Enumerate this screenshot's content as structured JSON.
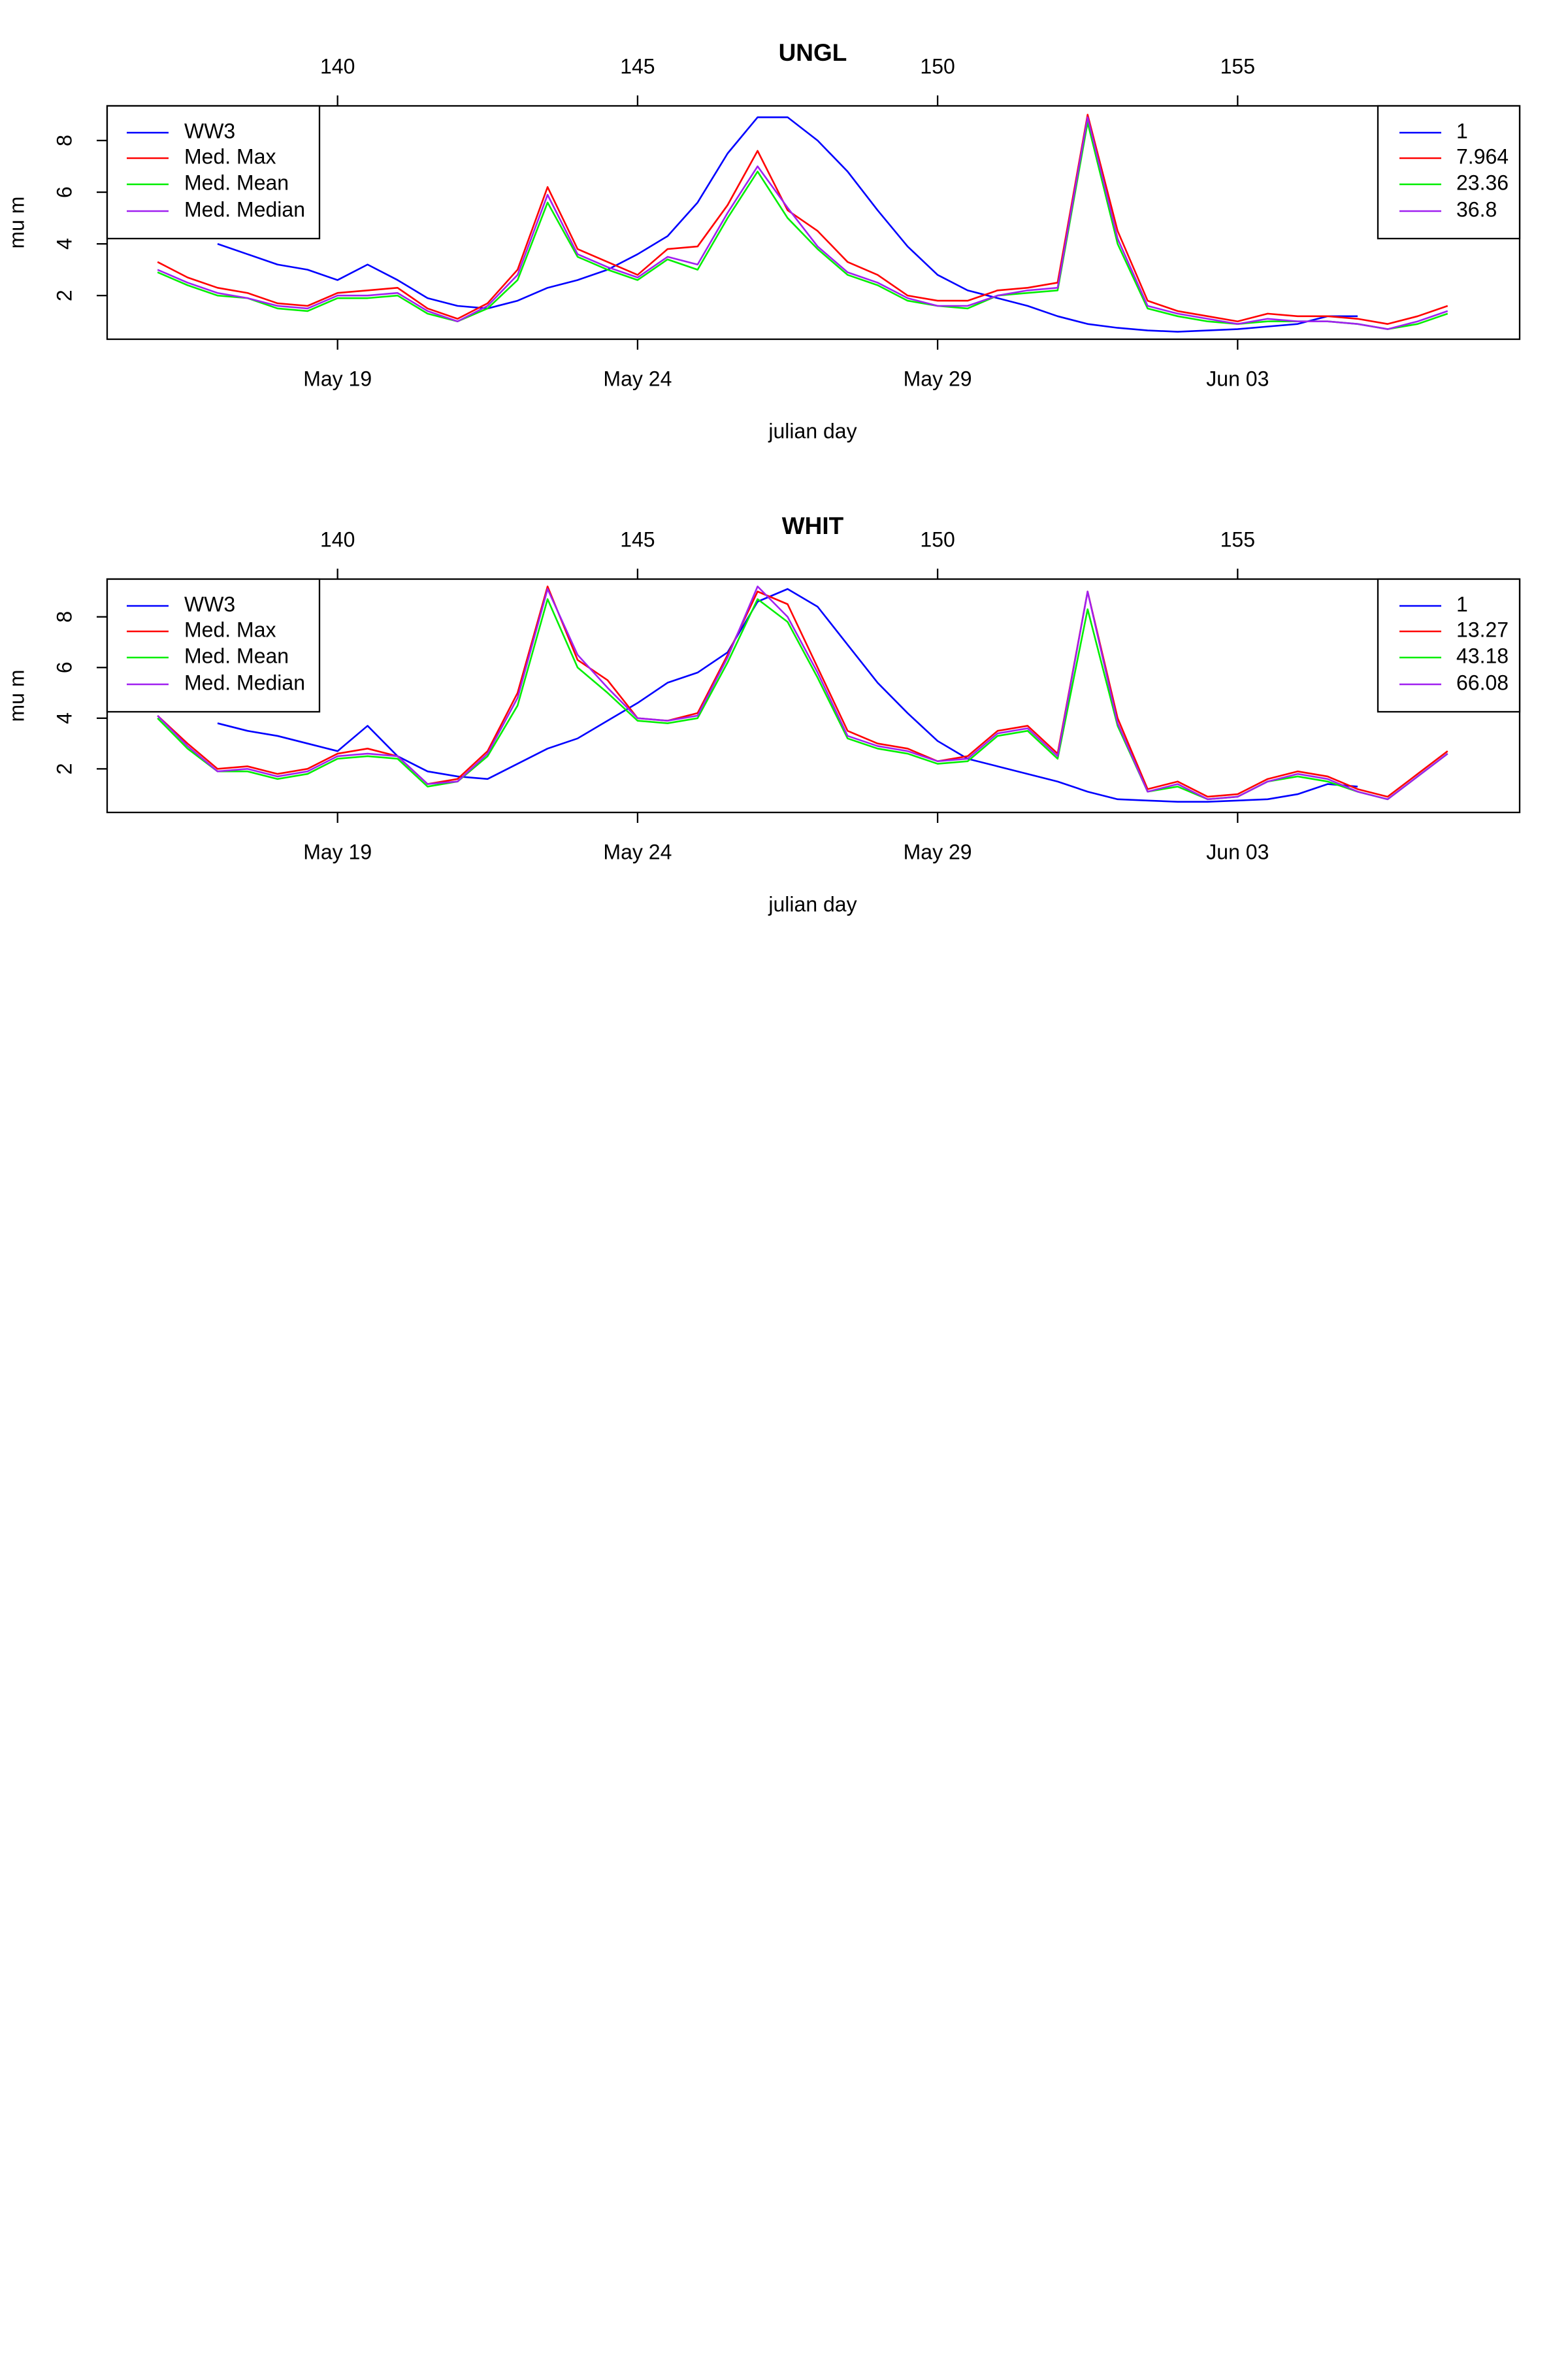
{
  "chart_data": [
    {
      "type": "line",
      "title": "UNGL",
      "x_label": "julian day",
      "y_label": "mu m",
      "xlim": [
        136.16,
        159.7
      ],
      "ylim": [
        0.31,
        9.34
      ],
      "yticks": [
        2,
        4,
        6,
        8
      ],
      "xticks": [
        140,
        145,
        150,
        155
      ],
      "x2ticks": [
        {
          "value": 140,
          "label": "May 19"
        },
        {
          "value": 145,
          "label": "May 24"
        },
        {
          "value": 150,
          "label": "May 29"
        },
        {
          "value": 155,
          "label": "Jun 03"
        }
      ],
      "series": [
        {
          "name": "WW3",
          "color": "#0000ff",
          "x": [
            138,
            138.5,
            139,
            139.5,
            140,
            140.5,
            141,
            141.5,
            142,
            142.5,
            143,
            143.5,
            144,
            144.5,
            145,
            145.5,
            146,
            146.5,
            147,
            147.5,
            148,
            148.5,
            149,
            149.5,
            150,
            150.5,
            151,
            151.5,
            152,
            152.5,
            153,
            153.5,
            154,
            154.5,
            155,
            155.5,
            156,
            156.5,
            157
          ],
          "values": [
            4.0,
            3.6,
            3.2,
            3.0,
            2.6,
            3.2,
            2.6,
            1.9,
            1.6,
            1.5,
            1.8,
            2.3,
            2.6,
            3.0,
            3.6,
            4.3,
            5.6,
            7.5,
            8.9,
            8.9,
            8.0,
            6.8,
            5.3,
            3.9,
            2.8,
            2.2,
            1.9,
            1.6,
            1.2,
            0.9,
            0.75,
            0.65,
            0.6,
            0.65,
            0.7,
            0.8,
            0.9,
            1.2,
            1.2
          ]
        },
        {
          "name": "Med. Max",
          "color": "#ff0000",
          "x": [
            137,
            137.5,
            138,
            138.5,
            139,
            139.5,
            140,
            140.5,
            141,
            141.5,
            142,
            142.5,
            143,
            143.5,
            144,
            144.5,
            145,
            145.5,
            146,
            146.5,
            147,
            147.5,
            148,
            148.5,
            149,
            149.5,
            150,
            150.5,
            151,
            151.5,
            152,
            152.5,
            153,
            153.5,
            154,
            154.5,
            155,
            155.5,
            156,
            156.5,
            157,
            157.5,
            158,
            158.5
          ],
          "values": [
            3.3,
            2.7,
            2.3,
            2.1,
            1.7,
            1.6,
            2.1,
            2.2,
            2.3,
            1.5,
            1.1,
            1.7,
            3.0,
            6.2,
            3.8,
            3.3,
            2.8,
            3.8,
            3.9,
            5.5,
            7.6,
            5.3,
            4.5,
            3.3,
            2.8,
            2.0,
            1.8,
            1.8,
            2.2,
            2.3,
            2.5,
            9.0,
            4.5,
            1.8,
            1.4,
            1.2,
            1.0,
            1.3,
            1.2,
            1.2,
            1.1,
            0.9,
            1.2,
            1.6
          ]
        },
        {
          "name": "Med. Mean",
          "color": "#00ee00",
          "x": [
            137,
            137.5,
            138,
            138.5,
            139,
            139.5,
            140,
            140.5,
            141,
            141.5,
            142,
            142.5,
            143,
            143.5,
            144,
            144.5,
            145,
            145.5,
            146,
            146.5,
            147,
            147.5,
            148,
            148.5,
            149,
            149.5,
            150,
            150.5,
            151,
            151.5,
            152,
            152.5,
            153,
            153.5,
            154,
            154.5,
            155,
            155.5,
            156,
            156.5,
            157,
            157.5,
            158,
            158.5
          ],
          "values": [
            2.9,
            2.4,
            2.0,
            1.9,
            1.5,
            1.4,
            1.9,
            1.9,
            2.0,
            1.3,
            1.0,
            1.5,
            2.6,
            5.6,
            3.5,
            3.0,
            2.6,
            3.4,
            3.0,
            5.0,
            6.8,
            5.0,
            3.8,
            2.8,
            2.4,
            1.8,
            1.6,
            1.5,
            2.0,
            2.1,
            2.2,
            8.7,
            4.0,
            1.5,
            1.2,
            1.0,
            0.9,
            1.0,
            1.0,
            1.0,
            0.9,
            0.7,
            0.9,
            1.3
          ]
        },
        {
          "name": "Med. Median",
          "color": "#a020f0",
          "x": [
            137,
            137.5,
            138,
            138.5,
            139,
            139.5,
            140,
            140.5,
            141,
            141.5,
            142,
            142.5,
            143,
            143.5,
            144,
            144.5,
            145,
            145.5,
            146,
            146.5,
            147,
            147.5,
            148,
            148.5,
            149,
            149.5,
            150,
            150.5,
            151,
            151.5,
            152,
            152.5,
            153,
            153.5,
            154,
            154.5,
            155,
            155.5,
            156,
            156.5,
            157,
            157.5,
            158,
            158.5
          ],
          "values": [
            3.0,
            2.5,
            2.1,
            1.9,
            1.6,
            1.5,
            2.0,
            2.0,
            2.1,
            1.4,
            1.0,
            1.6,
            2.8,
            5.9,
            3.6,
            3.1,
            2.7,
            3.5,
            3.2,
            5.2,
            7.0,
            5.4,
            3.9,
            2.9,
            2.5,
            1.9,
            1.6,
            1.6,
            2.0,
            2.2,
            2.3,
            8.9,
            4.2,
            1.6,
            1.3,
            1.1,
            0.9,
            1.1,
            1.0,
            1.0,
            0.9,
            0.7,
            1.0,
            1.4
          ]
        }
      ],
      "legend2": [
        "1",
        "7.964",
        "23.36",
        "36.8"
      ]
    },
    {
      "type": "line",
      "title": "WHIT",
      "x_label": "julian day",
      "y_label": "mu m",
      "xlim": [
        136.16,
        159.7
      ],
      "ylim": [
        0.28,
        9.49
      ],
      "yticks": [
        2,
        4,
        6,
        8
      ],
      "xticks": [
        140,
        145,
        150,
        155
      ],
      "x2ticks": [
        {
          "value": 140,
          "label": "May 19"
        },
        {
          "value": 145,
          "label": "May 24"
        },
        {
          "value": 150,
          "label": "May 29"
        },
        {
          "value": 155,
          "label": "Jun 03"
        }
      ],
      "series": [
        {
          "name": "WW3",
          "color": "#0000ff",
          "x": [
            138,
            138.5,
            139,
            139.5,
            140,
            140.5,
            141,
            141.5,
            142,
            142.5,
            143,
            143.5,
            144,
            144.5,
            145,
            145.5,
            146,
            146.5,
            147,
            147.5,
            148,
            148.5,
            149,
            149.5,
            150,
            150.5,
            151,
            151.5,
            152,
            152.5,
            153,
            153.5,
            154,
            154.5,
            155,
            155.5,
            156,
            156.5,
            157
          ],
          "values": [
            3.8,
            3.5,
            3.3,
            3.0,
            2.7,
            3.7,
            2.5,
            1.9,
            1.7,
            1.6,
            2.2,
            2.8,
            3.2,
            3.9,
            4.6,
            5.4,
            5.8,
            6.6,
            8.6,
            9.1,
            8.4,
            6.9,
            5.4,
            4.2,
            3.1,
            2.4,
            2.1,
            1.8,
            1.5,
            1.1,
            0.8,
            0.75,
            0.7,
            0.7,
            0.75,
            0.8,
            1.0,
            1.4,
            1.3
          ]
        },
        {
          "name": "Med. Max",
          "color": "#ff0000",
          "x": [
            137,
            137.5,
            138,
            138.5,
            139,
            139.5,
            140,
            140.5,
            141,
            141.5,
            142,
            142.5,
            143,
            143.5,
            144,
            144.5,
            145,
            145.5,
            146,
            146.5,
            147,
            147.5,
            148,
            148.5,
            149,
            149.5,
            150,
            150.5,
            151,
            151.5,
            152,
            152.5,
            153,
            153.5,
            154,
            154.5,
            155,
            155.5,
            156,
            156.5,
            157,
            157.5,
            158,
            158.5
          ],
          "values": [
            4.1,
            3.0,
            2.0,
            2.1,
            1.8,
            2.0,
            2.6,
            2.8,
            2.5,
            1.4,
            1.6,
            2.7,
            5.0,
            9.2,
            6.3,
            5.5,
            4.0,
            3.9,
            4.2,
            6.5,
            9.0,
            8.5,
            6.0,
            3.5,
            3.0,
            2.8,
            2.3,
            2.5,
            3.5,
            3.7,
            2.6,
            9.0,
            4.0,
            1.2,
            1.5,
            0.9,
            1.0,
            1.6,
            1.9,
            1.7,
            1.2,
            0.9,
            1.8,
            2.7
          ]
        },
        {
          "name": "Med. Mean",
          "color": "#00ee00",
          "x": [
            137,
            137.5,
            138,
            138.5,
            139,
            139.5,
            140,
            140.5,
            141,
            141.5,
            142,
            142.5,
            143,
            143.5,
            144,
            144.5,
            145,
            145.5,
            146,
            146.5,
            147,
            147.5,
            148,
            148.5,
            149,
            149.5,
            150,
            150.5,
            151,
            151.5,
            152,
            152.5,
            153,
            153.5,
            154,
            154.5,
            155,
            155.5,
            156,
            156.5,
            157,
            157.5,
            158,
            158.5
          ],
          "values": [
            4.0,
            2.8,
            1.9,
            1.9,
            1.6,
            1.8,
            2.4,
            2.5,
            2.4,
            1.3,
            1.5,
            2.5,
            4.5,
            8.7,
            6.0,
            5.0,
            3.9,
            3.8,
            4.0,
            6.2,
            8.7,
            7.8,
            5.6,
            3.2,
            2.8,
            2.6,
            2.2,
            2.3,
            3.3,
            3.5,
            2.4,
            8.3,
            3.7,
            1.1,
            1.3,
            0.8,
            0.9,
            1.5,
            1.7,
            1.5,
            1.1,
            0.8,
            1.7,
            2.6
          ]
        },
        {
          "name": "Med. Median",
          "color": "#a020f0",
          "x": [
            137,
            137.5,
            138,
            138.5,
            139,
            139.5,
            140,
            140.5,
            141,
            141.5,
            142,
            142.5,
            143,
            143.5,
            144,
            144.5,
            145,
            145.5,
            146,
            146.5,
            147,
            147.5,
            148,
            148.5,
            149,
            149.5,
            150,
            150.5,
            151,
            151.5,
            152,
            152.5,
            153,
            153.5,
            154,
            154.5,
            155,
            155.5,
            156,
            156.5,
            157,
            157.5,
            158,
            158.5
          ],
          "values": [
            4.1,
            2.9,
            1.9,
            2.0,
            1.7,
            1.9,
            2.5,
            2.6,
            2.5,
            1.4,
            1.5,
            2.6,
            4.8,
            9.1,
            6.5,
            5.2,
            4.0,
            3.9,
            4.1,
            6.4,
            9.2,
            8.0,
            5.8,
            3.3,
            2.9,
            2.7,
            2.3,
            2.4,
            3.4,
            3.6,
            2.5,
            9.0,
            3.8,
            1.1,
            1.4,
            0.8,
            0.9,
            1.5,
            1.8,
            1.6,
            1.1,
            0.8,
            1.7,
            2.6
          ]
        }
      ],
      "legend2": [
        "1",
        "13.27",
        "43.18",
        "66.08"
      ]
    }
  ]
}
